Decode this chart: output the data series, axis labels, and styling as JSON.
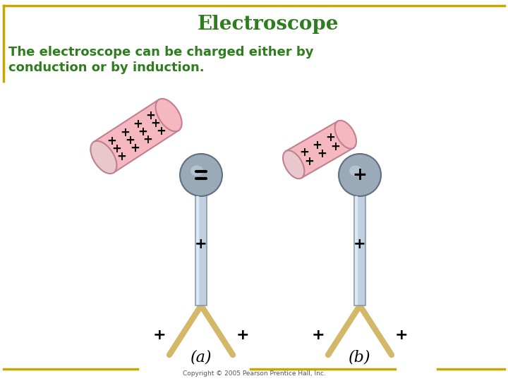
{
  "title": "Electroscope",
  "subtitle_line1": "The electroscope can be charged either by",
  "subtitle_line2": "conduction or by induction.",
  "title_color": "#2E7D1E",
  "subtitle_color": "#2E7D1E",
  "background_color": "#FFFFFF",
  "border_color": "#C8A800",
  "copyright": "Copyright © 2005 Pearson Prentice Hall, Inc.",
  "label_a": "(a)",
  "label_b": "(b)",
  "sphere_color": "#9BAAB8",
  "sphere_edge_color": "#7080909",
  "rod_color_light": "#C0D0E0",
  "rod_color_dark": "#8898A8",
  "leaf_color": "#D4B86A",
  "charge_rod_fill": "#F5B8C0",
  "charge_rod_edge": "#C08090",
  "charge_rod_end": "#E8A0B0"
}
